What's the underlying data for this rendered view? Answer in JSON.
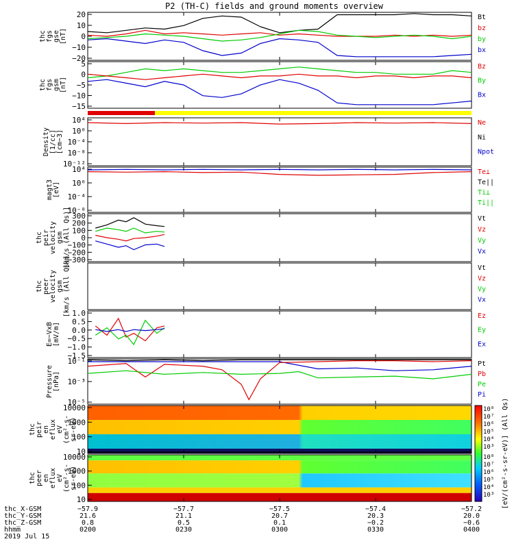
{
  "title": "P2 (TH-C) fields and ground moments overview",
  "colors": {
    "black": "#000000",
    "red": "#e00000",
    "green": "#00cc00",
    "blue": "#0000cc",
    "yellow": "#ffff00"
  },
  "chart_data": [
    {
      "type": "line",
      "ylabel_lines": [
        "thc",
        "fgs",
        "gse",
        "[nT]"
      ],
      "ylim": [
        -20,
        20
      ],
      "yticks": [
        "20",
        "10",
        "0",
        "−10",
        "−20"
      ],
      "legend": [
        {
          "label": "Bt",
          "color": "black"
        },
        {
          "label": "bz",
          "color": "red"
        },
        {
          "label": "by",
          "color": "green"
        },
        {
          "label": "bx",
          "color": "blue"
        }
      ],
      "series": [
        {
          "color": "black",
          "x": [
            0,
            0.05,
            0.1,
            0.15,
            0.2,
            0.25,
            0.3,
            0.35,
            0.4,
            0.45,
            0.5,
            0.55,
            0.6,
            0.65,
            0.7,
            0.75,
            0.8,
            0.85,
            0.9,
            0.95,
            1
          ],
          "y": [
            4,
            3,
            5,
            7,
            6,
            9,
            15,
            17,
            16,
            8,
            3,
            5,
            6,
            18,
            18,
            18,
            18,
            19,
            18,
            18,
            17
          ]
        },
        {
          "color": "red",
          "x": [
            0,
            0.05,
            0.1,
            0.15,
            0.2,
            0.25,
            0.3,
            0.35,
            0.4,
            0.45,
            0.5,
            0.55,
            0.6,
            0.65,
            0.7,
            0.75,
            0.8,
            0.85,
            0.9,
            0.95,
            1
          ],
          "y": [
            1,
            0,
            2,
            5,
            2,
            3,
            2,
            1,
            2,
            3,
            1,
            2,
            1,
            0,
            0,
            0,
            1,
            0,
            1,
            0,
            1
          ]
        },
        {
          "color": "green",
          "x": [
            0,
            0.05,
            0.1,
            0.15,
            0.2,
            0.25,
            0.3,
            0.35,
            0.4,
            0.45,
            0.5,
            0.55,
            0.6,
            0.65,
            0.7,
            0.75,
            0.8,
            0.85,
            0.9,
            0.95,
            1
          ],
          "y": [
            -2,
            -1,
            0,
            2,
            1,
            0,
            -2,
            -4,
            -3,
            -1,
            2,
            5,
            4,
            1,
            0,
            -1,
            0,
            1,
            0,
            -2,
            0
          ]
        },
        {
          "color": "blue",
          "x": [
            0,
            0.05,
            0.1,
            0.15,
            0.2,
            0.25,
            0.3,
            0.35,
            0.4,
            0.45,
            0.5,
            0.55,
            0.6,
            0.65,
            0.7,
            0.75,
            0.8,
            0.85,
            0.9,
            0.95,
            1
          ],
          "y": [
            -3,
            -2,
            -4,
            -6,
            -3,
            -5,
            -12,
            -16,
            -14,
            -6,
            -2,
            -3,
            -5,
            -16,
            -17,
            -17,
            -17,
            -17,
            -17,
            -16,
            -15
          ]
        }
      ]
    },
    {
      "type": "line",
      "ylabel_lines": [
        "thc",
        "fgs",
        "gsm",
        "[nT]"
      ],
      "ylim": [
        -18,
        8
      ],
      "yticks": [
        "5",
        "0",
        "−5",
        "−10",
        "−15"
      ],
      "legend": [
        {
          "label": "Bz",
          "color": "red"
        },
        {
          "label": "By",
          "color": "green"
        },
        {
          "label": "Bx",
          "color": "blue"
        }
      ],
      "series": [
        {
          "color": "green",
          "x": [
            0,
            0.05,
            0.1,
            0.15,
            0.2,
            0.25,
            0.3,
            0.35,
            0.4,
            0.45,
            0.5,
            0.55,
            0.6,
            0.65,
            0.7,
            0.75,
            0.8,
            0.85,
            0.9,
            0.95,
            1
          ],
          "y": [
            -1,
            0,
            2,
            4,
            3,
            4,
            3,
            2,
            2,
            3,
            4,
            5,
            4,
            3,
            2,
            2,
            1,
            1,
            1,
            3,
            2
          ]
        },
        {
          "color": "red",
          "x": [
            0,
            0.05,
            0.1,
            0.15,
            0.2,
            0.25,
            0.3,
            0.35,
            0.4,
            0.45,
            0.5,
            0.55,
            0.6,
            0.65,
            0.7,
            0.75,
            0.8,
            0.85,
            0.9,
            0.95,
            1
          ],
          "y": [
            1,
            0,
            -1,
            -2,
            -1,
            0,
            1,
            0,
            -1,
            0,
            0,
            1,
            0,
            0,
            -1,
            0,
            0,
            -1,
            0,
            0,
            -1
          ]
        },
        {
          "color": "blue",
          "x": [
            0,
            0.05,
            0.1,
            0.15,
            0.2,
            0.25,
            0.3,
            0.35,
            0.4,
            0.45,
            0.5,
            0.55,
            0.6,
            0.65,
            0.7,
            0.75,
            0.8,
            0.85,
            0.9,
            0.95,
            1
          ],
          "y": [
            -3,
            -2,
            -4,
            -6,
            -3,
            -5,
            -11,
            -12,
            -10,
            -5,
            -2,
            -4,
            -8,
            -15,
            -16,
            -16,
            -16,
            -16,
            -16,
            -15,
            -14
          ]
        }
      ]
    },
    {
      "type": "line",
      "ylabel_lines": [
        "Density",
        "[1/cc]",
        "[cm−3]"
      ],
      "yticks": [
        "10⁴",
        "10⁰",
        "10⁻⁴",
        "10⁻⁸",
        "10⁻¹²"
      ],
      "legend": [
        {
          "label": "Ne",
          "color": "red"
        },
        {
          "label": "Ni",
          "color": "black"
        },
        {
          "label": "Npot",
          "color": "blue"
        }
      ],
      "series": [
        {
          "color": "red",
          "x": [
            0,
            0.1,
            0.2,
            0.3,
            0.4,
            0.5,
            0.6,
            0.7,
            0.8,
            0.9,
            1
          ],
          "y": [
            0.1,
            0.12,
            0.1,
            0.11,
            0.1,
            0.13,
            0.12,
            0.1,
            0.11,
            0.1,
            0.12
          ]
        }
      ]
    },
    {
      "type": "line",
      "ylabel_lines": [
        "magt3",
        "[eV]"
      ],
      "yticks": [
        "10⁴",
        "10⁰",
        "10⁻⁴",
        "10⁻⁸"
      ],
      "legend": [
        {
          "label": "Te⊥",
          "color": "red"
        },
        {
          "label": "Te||",
          "color": "black"
        },
        {
          "label": "Ti⊥",
          "color": "green"
        },
        {
          "label": "Ti||",
          "color": "green"
        }
      ],
      "series": [
        {
          "color": "blue",
          "x": [
            0,
            0.1,
            0.2,
            0.3,
            0.4,
            0.5,
            0.6,
            0.7,
            0.8,
            0.9,
            1
          ],
          "y": [
            0.06,
            0.05,
            0.06,
            0.05,
            0.06,
            0.05,
            0.06,
            0.05,
            0.06,
            0.05,
            0.06
          ]
        },
        {
          "color": "red",
          "x": [
            0,
            0.1,
            0.2,
            0.3,
            0.4,
            0.5,
            0.6,
            0.7,
            0.8,
            0.9,
            1
          ],
          "y": [
            0.1,
            0.11,
            0.1,
            0.12,
            0.11,
            0.16,
            0.18,
            0.17,
            0.16,
            0.12,
            0.1
          ]
        }
      ]
    },
    {
      "type": "line",
      "ylabel_lines": [
        "thc",
        "peir",
        "velocity",
        "gsm",
        "[km/s (All Qs)]"
      ],
      "ylim": [
        -300,
        300
      ],
      "yticks": [
        "300",
        "200",
        "100",
        "0",
        "−100",
        "−200",
        "−300"
      ],
      "legend": [
        {
          "label": "Vt",
          "color": "black"
        },
        {
          "label": "Vz",
          "color": "red"
        },
        {
          "label": "Vy",
          "color": "green"
        },
        {
          "label": "Vx",
          "color": "blue"
        }
      ],
      "series": [
        {
          "color": "black",
          "x": [
            0.02,
            0.05,
            0.08,
            0.1,
            0.12,
            0.15,
            0.18,
            0.2
          ],
          "y": [
            120,
            160,
            220,
            200,
            250,
            170,
            150,
            140
          ]
        },
        {
          "color": "red",
          "x": [
            0.02,
            0.05,
            0.08,
            0.1,
            0.12,
            0.15,
            0.18,
            0.2
          ],
          "y": [
            30,
            0,
            -20,
            -40,
            -10,
            0,
            20,
            40
          ]
        },
        {
          "color": "green",
          "x": [
            0.02,
            0.05,
            0.08,
            0.1,
            0.12,
            0.15,
            0.18,
            0.2
          ],
          "y": [
            80,
            120,
            100,
            80,
            120,
            60,
            80,
            70
          ]
        },
        {
          "color": "blue",
          "x": [
            0.02,
            0.05,
            0.08,
            0.1,
            0.12,
            0.15,
            0.18,
            0.2
          ],
          "y": [
            -40,
            -80,
            -120,
            -100,
            -150,
            -90,
            -80,
            -110
          ]
        }
      ]
    },
    {
      "type": "line",
      "ylabel_lines": [
        "thc",
        "peer",
        "velocity",
        "gsm",
        "[km/s (All Qs)]"
      ],
      "yticks": [],
      "legend": [
        {
          "label": "Vt",
          "color": "black"
        },
        {
          "label": "Vz",
          "color": "red"
        },
        {
          "label": "Vy",
          "color": "green"
        },
        {
          "label": "Vx",
          "color": "blue"
        }
      ],
      "series": []
    },
    {
      "type": "line",
      "ylabel_lines": [
        "E=−VxB",
        "[mV/m]"
      ],
      "ylim": [
        -1.5,
        1.0
      ],
      "yticks": [
        "1.0",
        "0.5",
        "0.0",
        "−0.5",
        "−1.0",
        "−1.5"
      ],
      "legend": [
        {
          "label": "Ez",
          "color": "red"
        },
        {
          "label": "Ey",
          "color": "green"
        },
        {
          "label": "Ex",
          "color": "blue"
        }
      ],
      "series": [
        {
          "color": "red",
          "x": [
            0.02,
            0.05,
            0.08,
            0.1,
            0.12,
            0.15,
            0.18,
            0.2
          ],
          "y": [
            0.2,
            -0.3,
            0.6,
            -0.4,
            -0.2,
            -0.6,
            0.1,
            0.2
          ]
        },
        {
          "color": "green",
          "x": [
            0.02,
            0.05,
            0.08,
            0.1,
            0.12,
            0.15,
            0.18,
            0.2
          ],
          "y": [
            -0.3,
            0.1,
            -0.5,
            -0.3,
            -0.8,
            0.5,
            -0.2,
            0.1
          ]
        },
        {
          "color": "blue",
          "x": [
            0.02,
            0.05,
            0.08,
            0.1,
            0.12,
            0.15,
            0.18,
            0.2
          ],
          "y": [
            0.0,
            -0.1,
            0.0,
            -0.1,
            0.0,
            -0.05,
            0.0,
            0.05
          ]
        }
      ]
    },
    {
      "type": "line",
      "ylabel_lines": [
        "Pressure",
        "[nPa]"
      ],
      "ylim": [
        -6,
        -1
      ],
      "yticks": [
        "10⁻¹",
        "10⁻³",
        "10⁻⁵"
      ],
      "legend": [
        {
          "label": "Pt",
          "color": "black"
        },
        {
          "label": "Pb",
          "color": "red"
        },
        {
          "label": "Pe",
          "color": "green"
        },
        {
          "label": "Pi",
          "color": "blue"
        }
      ],
      "series": [
        {
          "color": "black",
          "x": [
            0,
            0.1,
            0.2,
            0.3,
            0.4,
            0.5,
            0.6,
            0.7,
            0.8,
            0.9,
            1
          ],
          "y": [
            -1.1,
            -1.2,
            -1.1,
            -1.2,
            -1.1,
            -1.1,
            -1.1,
            -1.1,
            -1.1,
            -1.1,
            -1.1
          ]
        },
        {
          "color": "blue",
          "x": [
            0,
            0.1,
            0.2,
            0.3,
            0.4,
            0.5,
            0.6,
            0.7,
            0.8,
            0.9,
            1
          ],
          "y": [
            -1.3,
            -1.3,
            -1.3,
            -1.3,
            -1.3,
            -1.3,
            -2.1,
            -2.0,
            -2.3,
            -2.2,
            -1.8
          ]
        },
        {
          "color": "red",
          "x": [
            0,
            0.1,
            0.15,
            0.2,
            0.3,
            0.35,
            0.4,
            0.42,
            0.45,
            0.5,
            0.6,
            0.7,
            0.8,
            0.9,
            1
          ],
          "y": [
            -1.8,
            -1.5,
            -3.0,
            -1.6,
            -1.8,
            -2.2,
            -3.8,
            -5.5,
            -3.2,
            -1.4,
            -1.3,
            -1.2,
            -1.2,
            -1.3,
            -1.2
          ]
        },
        {
          "color": "green",
          "x": [
            0,
            0.1,
            0.2,
            0.3,
            0.4,
            0.5,
            0.55,
            0.6,
            0.7,
            0.8,
            0.9,
            1
          ],
          "y": [
            -2.6,
            -2.3,
            -2.7,
            -2.5,
            -2.7,
            -2.6,
            -2.4,
            -3.1,
            -3.0,
            -2.9,
            -3.2,
            -2.7
          ]
        }
      ]
    },
    {
      "type": "heatmap",
      "ylabel_lines": [
        "thc",
        "peir",
        "en",
        "eflux",
        "eV",
        "(cm²-s-",
        "sr-eV)"
      ],
      "yticks": [
        "10000",
        "1000",
        "100",
        "10"
      ]
    },
    {
      "type": "heatmap",
      "ylabel_lines": [
        "thc",
        "peer",
        "en",
        "eflux",
        "eV",
        "(cm²-s-",
        "sr-eV)"
      ],
      "yticks": [
        "10000",
        "1000",
        "100",
        "10"
      ]
    }
  ],
  "colorbar": {
    "label": "[eV/(cm²-s-sr-eV)] (All Qs)",
    "ticks_top": [
      "10⁸",
      "10⁷",
      "10⁶",
      "10⁵",
      "10⁴",
      "10³"
    ],
    "ticks_bottom": [
      "10⁸",
      "10⁷",
      "10⁶",
      "10⁵",
      "10⁴",
      "10³"
    ]
  },
  "xaxis": {
    "rows": [
      {
        "label": "thc_X-GSM",
        "values": [
          "−57.9",
          "−57.7",
          "−57.5",
          "−57.4",
          "−57.2"
        ]
      },
      {
        "label": "thc_Y-GSM",
        "values": [
          "21.6",
          "21.1",
          "20.7",
          "20.3",
          "20.0"
        ]
      },
      {
        "label": "thc_Z-GSM",
        "values": [
          "0.8",
          "0.5",
          "0.1",
          "−0.2",
          "−0.6"
        ]
      },
      {
        "label": "hhmm",
        "values": [
          "0200",
          "0230",
          "0300",
          "0330",
          "0400"
        ]
      }
    ],
    "date": "2019 Jul 15"
  }
}
